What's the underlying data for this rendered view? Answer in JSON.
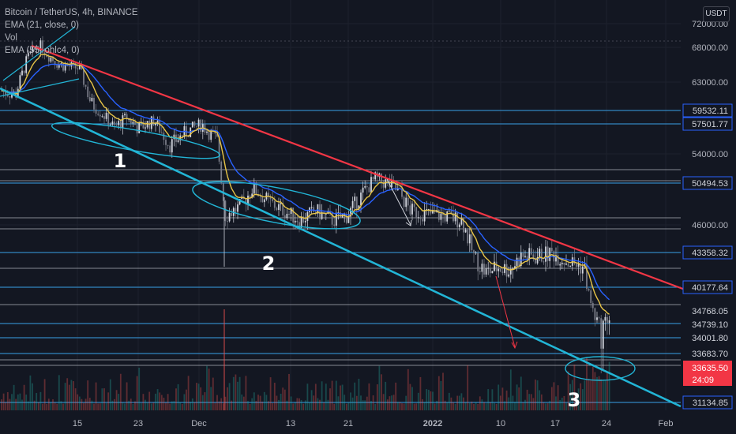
{
  "header": {
    "symbol": "Bitcoin / TetherUS, 4h, BINANCE",
    "ind1": "EMA (21, close, 0)",
    "ind2": "Vol",
    "ind3": "EMA (55, ohlc4, 0)",
    "currency": "USDT"
  },
  "chart_data": {
    "type": "candlestick",
    "title": "Bitcoin / TetherUS, 4h, BINANCE",
    "y_ticks": [
      "72000.00",
      "68000.00",
      "63000.00",
      "54000.00",
      "46000.00"
    ],
    "x_ticks": [
      "15",
      "23",
      "Dec",
      "13",
      "21",
      "2022",
      "10",
      "17",
      "24",
      "Feb"
    ],
    "horizontal_levels": [
      "59532.11",
      "57501.77",
      "50494.53",
      "43358.32",
      "40177.64",
      "34768.05",
      "34739.10",
      "34001.80",
      "33683.70",
      "31134.85"
    ],
    "current_price": "33635.50",
    "countdown": "24:09",
    "annotations": [
      "1",
      "2",
      "3"
    ],
    "price_path": [
      {
        "x": 0,
        "p": 62000
      },
      {
        "x": 20,
        "p": 61500
      },
      {
        "x": 35,
        "p": 66500
      },
      {
        "x": 50,
        "p": 68500
      },
      {
        "x": 60,
        "p": 67000
      },
      {
        "x": 75,
        "p": 65500
      },
      {
        "x": 100,
        "p": 65000
      },
      {
        "x": 115,
        "p": 60500
      },
      {
        "x": 130,
        "p": 59000
      },
      {
        "x": 145,
        "p": 57000
      },
      {
        "x": 160,
        "p": 58500
      },
      {
        "x": 175,
        "p": 57000
      },
      {
        "x": 195,
        "p": 58000
      },
      {
        "x": 215,
        "p": 55000
      },
      {
        "x": 235,
        "p": 56500
      },
      {
        "x": 255,
        "p": 57500
      },
      {
        "x": 275,
        "p": 55500
      },
      {
        "x": 285,
        "p": 47000
      },
      {
        "x": 305,
        "p": 48000
      },
      {
        "x": 320,
        "p": 50000
      },
      {
        "x": 340,
        "p": 48500
      },
      {
        "x": 360,
        "p": 47500
      },
      {
        "x": 380,
        "p": 46500
      },
      {
        "x": 400,
        "p": 47500
      },
      {
        "x": 420,
        "p": 46500
      },
      {
        "x": 440,
        "p": 47000
      },
      {
        "x": 460,
        "p": 49500
      },
      {
        "x": 475,
        "p": 51000
      },
      {
        "x": 490,
        "p": 50500
      },
      {
        "x": 505,
        "p": 49500
      },
      {
        "x": 520,
        "p": 47500
      },
      {
        "x": 540,
        "p": 47200
      },
      {
        "x": 560,
        "p": 47000
      },
      {
        "x": 585,
        "p": 46500
      },
      {
        "x": 600,
        "p": 43000
      },
      {
        "x": 615,
        "p": 41500
      },
      {
        "x": 630,
        "p": 42000
      },
      {
        "x": 645,
        "p": 41800
      },
      {
        "x": 660,
        "p": 43000
      },
      {
        "x": 680,
        "p": 43000
      },
      {
        "x": 700,
        "p": 43300
      },
      {
        "x": 720,
        "p": 42500
      },
      {
        "x": 740,
        "p": 42000
      },
      {
        "x": 752,
        "p": 36000
      },
      {
        "x": 760,
        "p": 34500
      },
      {
        "x": 770,
        "p": 35500
      }
    ]
  }
}
